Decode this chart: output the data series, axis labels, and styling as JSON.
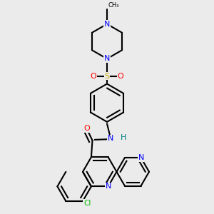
{
  "bg_color": "#ebebeb",
  "bond_color": "#000000",
  "bond_width": 1.5,
  "atom_colors": {
    "N": "#0000ff",
    "O": "#ff0000",
    "S": "#ccaa00",
    "Cl": "#00bb00",
    "H": "#008080",
    "C": "#000000"
  },
  "font_size": 7.5
}
